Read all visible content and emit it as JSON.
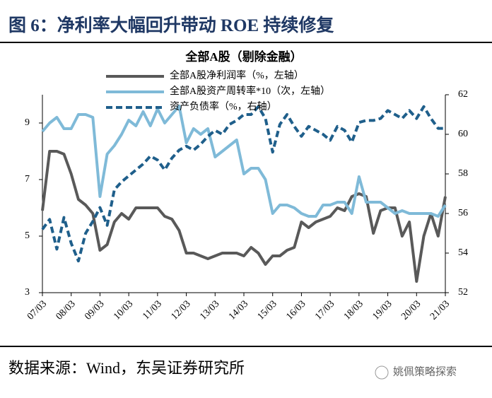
{
  "header": {
    "title": "图 6：净利率大幅回升带动 ROE 持续修复"
  },
  "footer": {
    "source": "数据来源：Wind，东吴证券研究所",
    "watermark": "姚佩策略探索"
  },
  "chart_data": {
    "type": "line",
    "title": "全部A股（剔除金融）",
    "categories": [
      "07/03",
      null,
      null,
      null,
      "08/03",
      null,
      null,
      null,
      "09/03",
      null,
      null,
      null,
      "10/03",
      null,
      null,
      null,
      "11/03",
      null,
      null,
      null,
      "12/03",
      null,
      null,
      null,
      "13/03",
      null,
      null,
      null,
      "14/03",
      null,
      null,
      null,
      "15/03",
      null,
      null,
      null,
      "16/03",
      null,
      null,
      null,
      "17/03",
      null,
      null,
      null,
      "18/03",
      null,
      null,
      null,
      "19/03",
      null,
      null,
      null,
      "20/03",
      null,
      null,
      null,
      "21/03"
    ],
    "series": [
      {
        "name": "全部A股净利润率（%，左轴）",
        "color": "#595959",
        "dash": false,
        "values": [
          5.9,
          8.0,
          8.0,
          7.9,
          7.2,
          6.3,
          6.1,
          5.8,
          4.5,
          4.7,
          5.5,
          5.8,
          5.6,
          6.0,
          6.0,
          6.0,
          6.0,
          5.7,
          5.6,
          5.2,
          4.4,
          4.4,
          4.3,
          4.2,
          4.3,
          4.4,
          4.4,
          4.4,
          4.3,
          4.6,
          4.4,
          4.0,
          4.3,
          4.3,
          4.5,
          4.6,
          5.5,
          5.3,
          5.5,
          5.6,
          5.7,
          6.0,
          5.9,
          6.4,
          6.5,
          6.4,
          5.1,
          5.9,
          6.0,
          6.0,
          5.0,
          5.5,
          3.4,
          5.0,
          5.8,
          5.0,
          6.4
        ]
      },
      {
        "name": "全部A股资产周转率*10（次，左轴）",
        "color": "#7fbad8",
        "dash": false,
        "values": [
          8.7,
          9.0,
          9.2,
          8.8,
          8.8,
          9.3,
          9.3,
          9.2,
          6.4,
          7.9,
          8.2,
          8.6,
          9.1,
          8.9,
          9.4,
          8.9,
          9.5,
          9.0,
          9.3,
          9.6,
          8.3,
          8.8,
          8.6,
          8.8,
          7.8,
          8.0,
          8.2,
          8.4,
          7.2,
          7.4,
          7.4,
          7.0,
          5.8,
          6.1,
          6.1,
          6.0,
          5.8,
          5.7,
          5.7,
          6.1,
          6.1,
          6.2,
          6.2,
          5.8,
          7.1,
          6.2,
          6.2,
          6.2,
          6.0,
          5.8,
          5.9,
          5.8,
          5.8,
          5.8,
          5.8,
          5.7,
          6.1
        ]
      },
      {
        "name": "资产负债率（%，右轴）",
        "color": "#1f5f8b",
        "dash": true,
        "axis": "y2",
        "values": [
          55.2,
          55.7,
          54.2,
          55.8,
          54.5,
          53.6,
          55.0,
          55.6,
          56.3,
          55.4,
          57.2,
          57.6,
          57.9,
          58.2,
          58.5,
          58.9,
          58.7,
          58.2,
          58.8,
          59.2,
          59.4,
          59.2,
          59.5,
          59.9,
          60.2,
          60.0,
          60.5,
          60.7,
          61.0,
          61.0,
          61.4,
          60.8,
          59.1,
          60.5,
          61.0,
          60.4,
          59.9,
          60.4,
          60.2,
          60.0,
          59.7,
          60.4,
          60.2,
          59.6,
          60.6,
          60.7,
          60.7,
          60.8,
          61.2,
          61.0,
          60.8,
          61.2,
          60.8,
          61.4,
          60.8,
          60.3,
          60.3
        ]
      }
    ],
    "ylim": [
      3,
      10
    ],
    "yticks": [
      3,
      5,
      7,
      9
    ],
    "y2lim": [
      52,
      62
    ],
    "y2ticks": [
      52,
      54,
      56,
      58,
      60,
      62
    ]
  }
}
